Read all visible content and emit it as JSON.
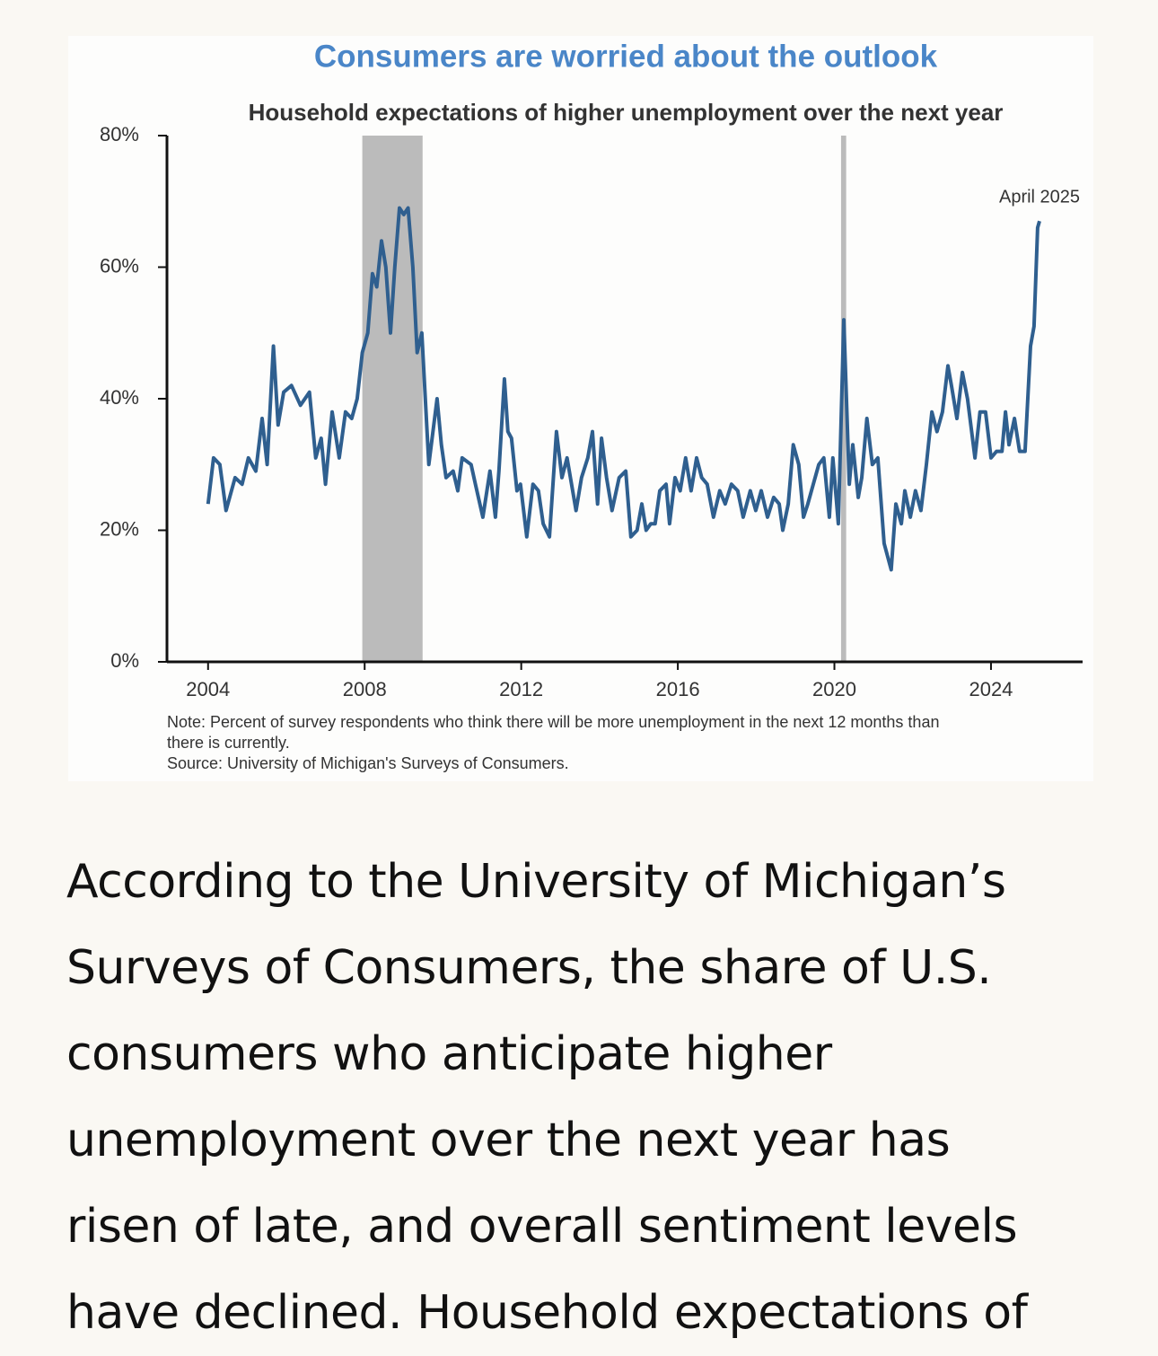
{
  "chart_data": {
    "type": "line",
    "title": "Consumers are worried about the outlook",
    "subtitle": "Household expectations of higher unemployment over the next year",
    "annotation": "April 2025",
    "note": [
      "Note: Percent of survey respondents who think there will be more unemployment in the next 12 months than",
      "there is currently.",
      "Source: University of Michigan's Surveys of Consumers."
    ],
    "xlim": [
      2002.95,
      2026.34
    ],
    "xticks": [
      2004,
      2008,
      2012,
      2016,
      2020,
      2024
    ],
    "ylim": [
      0,
      80
    ],
    "yticks": [
      {
        "value": 0,
        "label": "0%"
      },
      {
        "value": 20,
        "label": "20%"
      },
      {
        "value": 40,
        "label": "40%"
      },
      {
        "value": 60,
        "label": "60%"
      },
      {
        "value": 80,
        "label": "80%"
      }
    ],
    "shaded_periods": [
      [
        2007.94,
        2009.48
      ],
      [
        2020.17,
        2020.3
      ]
    ],
    "shade_color": "#bbbbbb",
    "x": [
      2004.0,
      2004.14,
      2004.3,
      2004.46,
      2004.69,
      2004.87,
      2005.03,
      2005.22,
      2005.38,
      2005.51,
      2005.67,
      2005.79,
      2005.93,
      2006.13,
      2006.36,
      2006.59,
      2006.75,
      2006.89,
      2007.0,
      2007.17,
      2007.35,
      2007.51,
      2007.67,
      2007.81,
      2007.94,
      2008.08,
      2008.2,
      2008.31,
      2008.43,
      2008.54,
      2008.66,
      2008.77,
      2008.89,
      2009.0,
      2009.11,
      2009.23,
      2009.34,
      2009.46,
      2009.64,
      2009.85,
      2009.96,
      2010.08,
      2010.26,
      2010.38,
      2010.49,
      2010.72,
      2010.83,
      2011.02,
      2011.2,
      2011.34,
      2011.43,
      2011.57,
      2011.66,
      2011.75,
      2011.89,
      2011.98,
      2012.14,
      2012.3,
      2012.44,
      2012.56,
      2012.72,
      2012.9,
      2013.04,
      2013.17,
      2013.4,
      2013.54,
      2013.7,
      2013.82,
      2013.95,
      2014.05,
      2014.18,
      2014.32,
      2014.5,
      2014.67,
      2014.8,
      2014.96,
      2015.08,
      2015.19,
      2015.31,
      2015.42,
      2015.54,
      2015.7,
      2015.79,
      2015.93,
      2016.06,
      2016.2,
      2016.34,
      2016.48,
      2016.61,
      2016.75,
      2016.91,
      2017.07,
      2017.21,
      2017.37,
      2017.53,
      2017.67,
      2017.85,
      2017.99,
      2018.13,
      2018.29,
      2018.45,
      2018.59,
      2018.68,
      2018.82,
      2018.95,
      2019.09,
      2019.21,
      2019.32,
      2019.46,
      2019.6,
      2019.73,
      2019.87,
      2019.96,
      2020.1,
      2020.24,
      2020.38,
      2020.47,
      2020.61,
      2020.7,
      2020.83,
      2020.97,
      2021.11,
      2021.27,
      2021.45,
      2021.57,
      2021.71,
      2021.8,
      2021.94,
      2022.07,
      2022.21,
      2022.35,
      2022.49,
      2022.62,
      2022.76,
      2022.9,
      2022.99,
      2023.13,
      2023.27,
      2023.4,
      2023.59,
      2023.72,
      2023.86,
      2024.0,
      2024.14,
      2024.28,
      2024.37,
      2024.46,
      2024.6,
      2024.73,
      2024.87,
      2025.01,
      2025.1,
      2025.19,
      2025.24
    ],
    "series": [
      {
        "name": "Household expectations",
        "color": "#2f5f8f",
        "values": [
          24,
          31,
          30,
          23,
          28,
          27,
          31,
          29,
          37,
          30,
          48,
          36,
          41,
          42,
          39,
          41,
          31,
          34,
          27,
          38,
          31,
          38,
          37,
          40,
          47,
          50,
          59,
          57,
          64,
          60,
          50,
          60,
          69,
          68,
          69,
          60,
          47,
          50,
          30,
          40,
          33,
          28,
          29,
          26,
          31,
          30,
          27,
          22,
          29,
          22,
          29,
          43,
          35,
          34,
          26,
          27,
          19,
          27,
          26,
          21,
          19,
          35,
          28,
          31,
          23,
          28,
          31,
          35,
          24,
          34,
          28,
          23,
          28,
          29,
          19,
          20,
          24,
          20,
          21,
          21,
          26,
          27,
          21,
          28,
          26,
          31,
          26,
          31,
          28,
          27,
          22,
          26,
          24,
          27,
          26,
          22,
          26,
          23,
          26,
          22,
          25,
          24,
          20,
          24,
          33,
          30,
          22,
          24,
          27,
          30,
          31,
          22,
          31,
          21,
          52,
          27,
          33,
          25,
          28,
          37,
          30,
          31,
          18,
          14,
          24,
          21,
          26,
          22,
          26,
          23,
          30,
          38,
          35,
          38,
          45,
          42,
          37,
          44,
          40,
          31,
          38,
          38,
          31,
          32,
          32,
          38,
          33,
          37,
          32,
          32,
          48,
          51,
          66,
          67
        ]
      }
    ]
  },
  "article": {
    "lines": [
      "According to the University of Michigan’s",
      "Surveys of Consumers, the share of U.S.",
      "consumers who anticipate higher",
      "unemployment over the next year has",
      "risen of late, and overall sentiment levels",
      "have declined. Household expectations of"
    ]
  }
}
